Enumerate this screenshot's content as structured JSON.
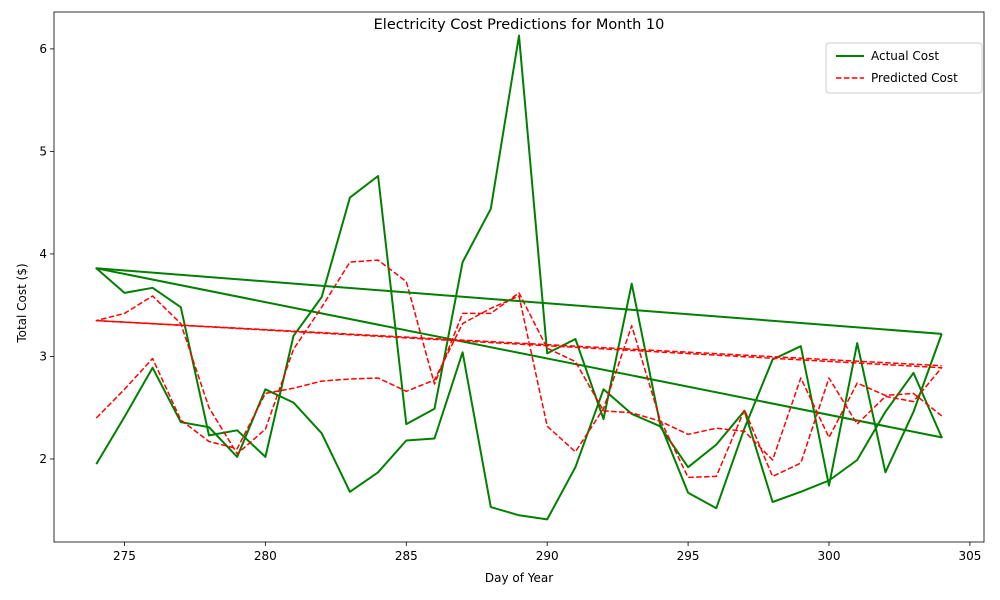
{
  "chart_data": {
    "type": "line",
    "title": "Electricity Cost Predictions for Month 10",
    "xlabel": "Day of Year",
    "ylabel": "Total Cost ($)",
    "xlim": [
      272.5,
      305.5
    ],
    "ylim": [
      1.19,
      6.36
    ],
    "xticks": [
      275,
      280,
      285,
      290,
      295,
      300,
      305
    ],
    "yticks": [
      2,
      3,
      4,
      5,
      6
    ],
    "legend": "upper-right",
    "grid": false,
    "series": [
      {
        "name": "Actual Cost",
        "color": "#008000",
        "style": "solid",
        "x": [
          274,
          275,
          276,
          277,
          278,
          279,
          280,
          281,
          282,
          283,
          284,
          285,
          286,
          287,
          288,
          289,
          290,
          291,
          292,
          293,
          294,
          295,
          296,
          297,
          298,
          299,
          300,
          301,
          302,
          303,
          304,
          274,
          275,
          276,
          277,
          278,
          279,
          280,
          281,
          282,
          283,
          284,
          285,
          286,
          287,
          288,
          289,
          290,
          291,
          292,
          293,
          294,
          295,
          296,
          297,
          298,
          299,
          300,
          301,
          302,
          303,
          304
        ],
        "y": [
          1.95,
          2.41,
          2.89,
          2.36,
          2.31,
          2.02,
          2.68,
          2.55,
          2.25,
          1.68,
          1.87,
          2.18,
          2.2,
          3.04,
          1.53,
          1.45,
          1.41,
          1.92,
          2.68,
          2.44,
          2.32,
          1.92,
          2.14,
          2.47,
          1.58,
          1.68,
          1.79,
          1.99,
          2.46,
          2.84,
          2.21,
          3.86,
          3.62,
          3.67,
          3.48,
          2.23,
          2.28,
          2.02,
          3.2,
          3.58,
          4.55,
          4.76,
          2.34,
          2.49,
          3.92,
          4.44,
          6.13,
          3.03,
          3.17,
          2.39,
          3.71,
          2.35,
          1.67,
          1.52,
          2.3,
          2.97,
          3.1,
          1.74,
          3.13,
          1.87,
          2.46,
          3.22
        ]
      },
      {
        "name": "Predicted Cost",
        "color": "#ff0000",
        "style": "dashed",
        "x": [
          274,
          275,
          276,
          277,
          278,
          279,
          280,
          281,
          282,
          283,
          284,
          285,
          286,
          287,
          288,
          289,
          290,
          291,
          292,
          293,
          294,
          295,
          296,
          297,
          298,
          299,
          300,
          301,
          302,
          303,
          304,
          274,
          275,
          276,
          277,
          278,
          279,
          280,
          281,
          282,
          283,
          284,
          285,
          286,
          287,
          288,
          289,
          290,
          291,
          292,
          293,
          294,
          295,
          296,
          297,
          298,
          299,
          300,
          301,
          302,
          303,
          304
        ],
        "y": [
          2.4,
          2.68,
          2.98,
          2.38,
          2.17,
          2.1,
          2.64,
          2.69,
          2.76,
          2.78,
          2.79,
          2.66,
          2.77,
          3.32,
          3.47,
          3.59,
          2.32,
          2.07,
          2.49,
          3.3,
          2.39,
          1.82,
          1.83,
          2.48,
          1.83,
          1.96,
          2.79,
          2.34,
          2.61,
          2.56,
          2.89,
          3.35,
          3.42,
          3.59,
          3.32,
          2.5,
          2.05,
          2.29,
          3.07,
          3.48,
          3.92,
          3.94,
          3.73,
          2.73,
          3.42,
          3.42,
          3.62,
          3.08,
          2.95,
          2.47,
          2.45,
          2.37,
          2.24,
          2.3,
          2.27,
          1.99,
          2.79,
          2.21,
          2.74,
          2.62,
          2.64,
          2.42
        ]
      },
      {
        "name": "",
        "color": "#008000",
        "style": "solid",
        "x": [
          274,
          304
        ],
        "y": [
          3.86,
          3.22
        ]
      },
      {
        "name": "",
        "color": "#ff0000",
        "style": "dashed",
        "x": [
          274,
          304
        ],
        "y": [
          3.35,
          2.91
        ]
      }
    ]
  }
}
